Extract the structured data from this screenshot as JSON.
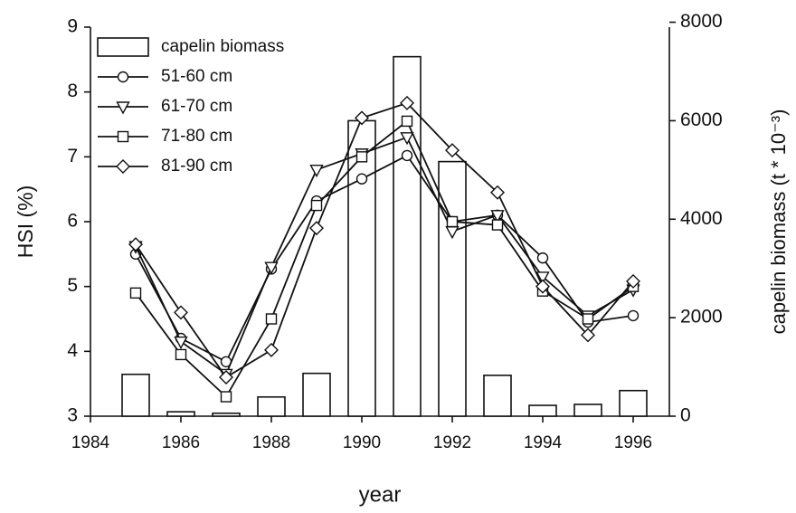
{
  "chart_data": {
    "type": "bar-line",
    "xlabel": "year",
    "ylabel": "HSI (%)",
    "y2label": "capelin biomass (t * 10⁻³)",
    "x": [
      1985,
      1986,
      1987,
      1988,
      1989,
      1990,
      1991,
      1992,
      1993,
      1994,
      1995,
      1996
    ],
    "xlim": [
      1984,
      1996.8
    ],
    "xticks": [
      1984,
      1986,
      1988,
      1990,
      1992,
      1994,
      1996
    ],
    "ylim": [
      3,
      9
    ],
    "yticks": [
      3,
      4,
      5,
      6,
      7,
      8,
      9
    ],
    "y2lim": [
      0,
      7900
    ],
    "y2ticks": [
      0,
      2000,
      4000,
      6000,
      8000
    ],
    "legend": "upper left",
    "series": [
      {
        "name": "capelin biomass",
        "type": "bar",
        "axis": "y2",
        "color": "#ffffff",
        "values": [
          850,
          90,
          60,
          390,
          870,
          6000,
          7300,
          5170,
          830,
          220,
          240,
          520
        ]
      },
      {
        "name": "51-60 cm",
        "type": "line",
        "marker": "circle",
        "color": "#111111",
        "values": [
          5.5,
          4.2,
          3.84,
          5.27,
          6.32,
          6.66,
          7.02,
          6.0,
          6.1,
          5.44,
          4.45,
          4.55
        ]
      },
      {
        "name": "61-70 cm",
        "type": "line",
        "marker": "triangle-down",
        "color": "#111111",
        "values": [
          5.62,
          4.15,
          3.65,
          5.3,
          6.8,
          7.05,
          7.3,
          5.85,
          6.1,
          5.15,
          4.55,
          4.95
        ]
      },
      {
        "name": "71-80 cm",
        "type": "line",
        "marker": "square",
        "color": "#111111",
        "values": [
          4.9,
          3.95,
          3.3,
          4.5,
          6.25,
          7.0,
          7.55,
          6.0,
          5.95,
          4.93,
          4.5,
          5.0
        ]
      },
      {
        "name": "81-90 cm",
        "type": "line",
        "marker": "diamond",
        "color": "#111111",
        "values": [
          5.65,
          4.6,
          3.6,
          4.02,
          5.9,
          7.6,
          7.83,
          7.1,
          6.45,
          5.0,
          4.25,
          5.08
        ]
      }
    ]
  }
}
